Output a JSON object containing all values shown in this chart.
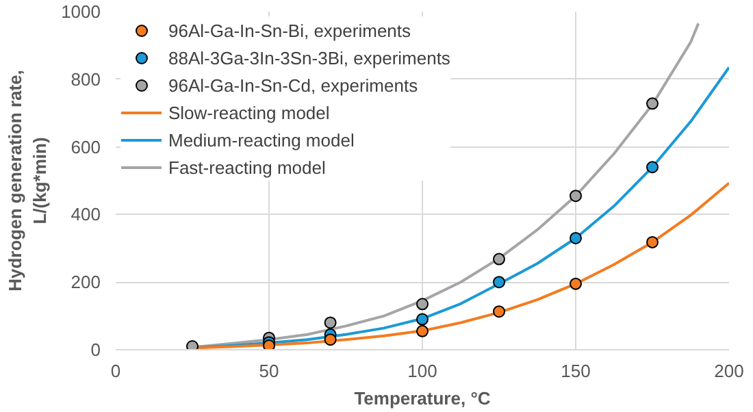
{
  "chart_data": {
    "type": "line",
    "xlabel": "Temperature, °C",
    "ylabel": "Hydrogen generation rate,\nL/(kg*min)",
    "xlim": [
      0,
      200
    ],
    "ylim": [
      0,
      1000
    ],
    "xticks": [
      0,
      50,
      100,
      150,
      200
    ],
    "yticks": [
      0,
      200,
      400,
      600,
      800,
      1000
    ],
    "grid": true,
    "legend": "top left",
    "series": [
      {
        "name": "96Al-Ga-In-Sn-Bi, experiments",
        "type": "scatter",
        "marker": "circle",
        "color": "#f47b20",
        "x": [
          50,
          70,
          100,
          125,
          150,
          175
        ],
        "values": [
          12,
          30,
          55,
          113,
          195,
          318
        ]
      },
      {
        "name": "88Al-3Ga-3In-3Sn-3Bi, experiments",
        "type": "scatter",
        "marker": "circle",
        "color": "#1b9ad6",
        "x": [
          50,
          70,
          100,
          125,
          150,
          175
        ],
        "values": [
          22,
          45,
          90,
          200,
          330,
          540
        ]
      },
      {
        "name": "96Al-Ga-In-Sn-Cd, experiments",
        "type": "scatter",
        "marker": "circle",
        "color": "#a5a5a5",
        "x": [
          25,
          50,
          70,
          100,
          125,
          150,
          175
        ],
        "values": [
          10,
          35,
          80,
          135,
          268,
          455,
          728
        ]
      },
      {
        "name": "Slow-reacting model",
        "color": "#f47b20",
        "x": [
          25,
          37.5,
          50,
          62.5,
          75,
          87.5,
          100,
          112.5,
          125,
          137.5,
          150,
          162.5,
          175,
          187.5,
          200
        ],
        "values": [
          5,
          9,
          14,
          20,
          30,
          41,
          56,
          80,
          110,
          148,
          195,
          252,
          318,
          398,
          493
        ]
      },
      {
        "name": "Medium-reacting model",
        "color": "#1b9ad6",
        "x": [
          25,
          37.5,
          50,
          62.5,
          75,
          87.5,
          100,
          112.5,
          125,
          137.5,
          150,
          162.5,
          175,
          187.5,
          200
        ],
        "values": [
          6,
          12,
          20,
          30,
          45,
          64,
          92,
          136,
          195,
          255,
          330,
          425,
          540,
          675,
          835
        ]
      },
      {
        "name": "Fast-reacting model",
        "color": "#a5a5a5",
        "x": [
          25,
          37.5,
          50,
          62.5,
          75,
          87.5,
          100,
          112.5,
          125,
          137.5,
          150,
          162.5,
          175,
          187.5,
          190
        ],
        "values": [
          7,
          18,
          30,
          45,
          70,
          100,
          145,
          200,
          270,
          355,
          455,
          580,
          725,
          910,
          965
        ]
      }
    ]
  }
}
